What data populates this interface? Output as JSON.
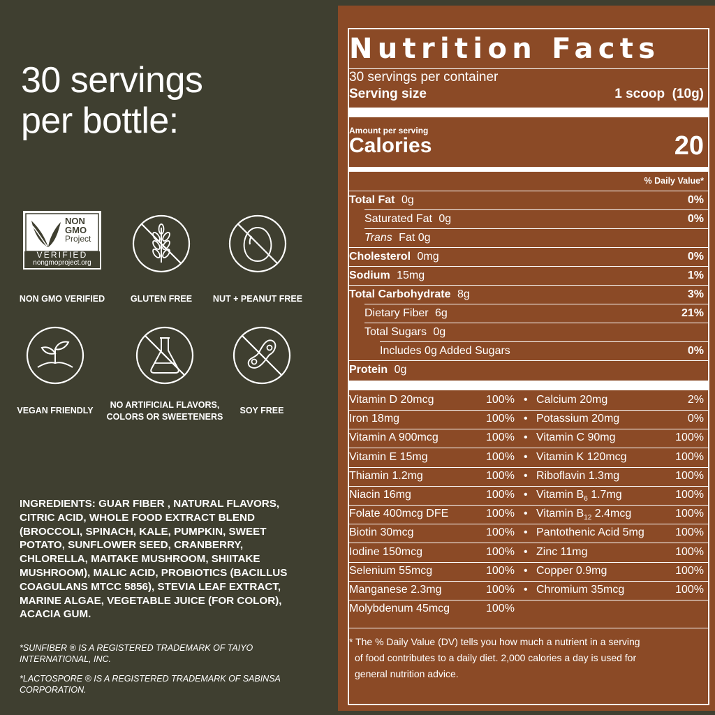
{
  "headline": {
    "line1": "30 servings",
    "line2": "per bottle:"
  },
  "badges": [
    {
      "icon": "non-gmo-project-logo",
      "label": "NON GMO VERIFIED",
      "logo_text": [
        "NON",
        "GMO",
        "Project",
        "VERIFIED",
        "nongmoproject.org"
      ]
    },
    {
      "icon": "wheat-crossed-icon",
      "label": "GLUTEN FREE"
    },
    {
      "icon": "egg-crossed-icon",
      "label": "NUT + PEANUT FREE"
    },
    {
      "icon": "sprout-icon",
      "label": "VEGAN FRIENDLY"
    },
    {
      "icon": "flask-crossed-icon",
      "label": "NO ARTIFICIAL FLAVORS, COLORS OR SWEETENERS"
    },
    {
      "icon": "soybean-crossed-icon",
      "label": "SOY FREE"
    }
  ],
  "ingredients": "INGREDIENTS: GUAR FIBER , NATURAL FLAVORS, CITRIC ACID, WHOLE FOOD EXTRACT BLEND (BROCCOLI, SPINACH, KALE, PUMPKIN, SWEET POTATO, SUNFLOWER SEED, CRANBERRY, CHLORELLA, MAITAKE MUSHROOM, SHIITAKE MUSHROOM), MALIC ACID, PROBIOTICS (BACILLUS COAGULANS MTCC 5856), STEVIA LEAF EXTRACT, MARINE ALGAE, VEGETABLE JUICE (FOR COLOR), ACACIA GUM.",
  "trademarks": [
    "*SUNFIBER ® IS A REGISTERED TRADEMARK OF TAIYO INTERNATIONAL, INC.",
    "*LACTOSPORE ® IS A REGISTERED TRADEMARK OF SABINSA CORPORATION."
  ],
  "nutrition": {
    "title": "Nutrition Facts",
    "servings": "30 servings per container",
    "serving_size_label": "Serving size",
    "serving_size_value": "1 scoop  (10g)",
    "amount_per_serving": "Amount per serving",
    "calories_label": "Calories",
    "calories_value": "20",
    "dv_header": "% Daily Value*",
    "rows": [
      {
        "label": "Total Fat",
        "amount": "0g",
        "dv": "0%"
      },
      {
        "label": "Saturated Fat",
        "amount": "0g",
        "dv": "0%"
      },
      {
        "label": "Trans",
        "amount": "Fat 0g",
        "dv": ""
      },
      {
        "label": "Cholesterol",
        "amount": "0mg",
        "dv": "0%"
      },
      {
        "label": "Sodium",
        "amount": "15mg",
        "dv": "1%"
      },
      {
        "label": "Total Carbohydrate",
        "amount": "8g",
        "dv": "3%"
      },
      {
        "label": "Dietary Fiber",
        "amount": "6g",
        "dv": "21%"
      },
      {
        "label": "Total Sugars",
        "amount": "0g",
        "dv": ""
      },
      {
        "label": "Includes 0g Added Sugars",
        "amount": "",
        "dv": "0%"
      },
      {
        "label": "Protein",
        "amount": "0g",
        "dv": ""
      }
    ],
    "vitamins": [
      {
        "left": "Vitamin D 20mcg",
        "left_dv": "100%",
        "right": "Calcium 20mg",
        "right_dv": "2%"
      },
      {
        "left": "Iron 18mg",
        "left_dv": "100%",
        "right": "Potassium 20mg",
        "right_dv": "0%"
      },
      {
        "left": "Vitamin A 900mcg",
        "left_dv": "100%",
        "right": "Vitamin C 90mg",
        "right_dv": "100%"
      },
      {
        "left": "Vitamin E 15mg",
        "left_dv": "100%",
        "right": "Vitamin K 120mcg",
        "right_dv": "100%"
      },
      {
        "left": "Thiamin 1.2mg",
        "left_dv": "100%",
        "right": "Riboflavin 1.3mg",
        "right_dv": "100%"
      },
      {
        "left": "Niacin 16mg",
        "left_dv": "100%",
        "right_a": "Vitamin B",
        "right_sub": "6",
        "right_b": " 1.7mg",
        "right_dv": "100%"
      },
      {
        "left": "Folate 400mcg DFE",
        "left_dv": "100%",
        "right_a": "Vitamin B",
        "right_sub": "12",
        "right_b": " 2.4mcg",
        "right_dv": "100%"
      },
      {
        "left": "Biotin 30mcg",
        "left_dv": "100%",
        "right": "Pantothenic Acid 5mg",
        "right_dv": "100%"
      },
      {
        "left": "Iodine 150mcg",
        "left_dv": "100%",
        "right": "Zinc 11mg",
        "right_dv": "100%"
      },
      {
        "left": "Selenium 55mcg",
        "left_dv": "100%",
        "right": "Copper 0.9mg",
        "right_dv": "100%"
      },
      {
        "left": "Manganese 2.3mg",
        "left_dv": "100%",
        "right": "Chromium 35mcg",
        "right_dv": "100%"
      },
      {
        "left": "Molybdenum 45mcg",
        "left_dv": "100%",
        "right": "",
        "right_dv": ""
      }
    ],
    "bullet": "•",
    "footnote_1": "* The % Daily Value (DV) tells you how much a nutrient in a serving",
    "footnote_2": "of food contributes to a daily diet. 2,000 calories a day is used for",
    "footnote_3": "general nutrition advice."
  },
  "colors": {
    "background": "#3f3f30",
    "panel": "#8b4a26",
    "text": "#ffffff"
  }
}
